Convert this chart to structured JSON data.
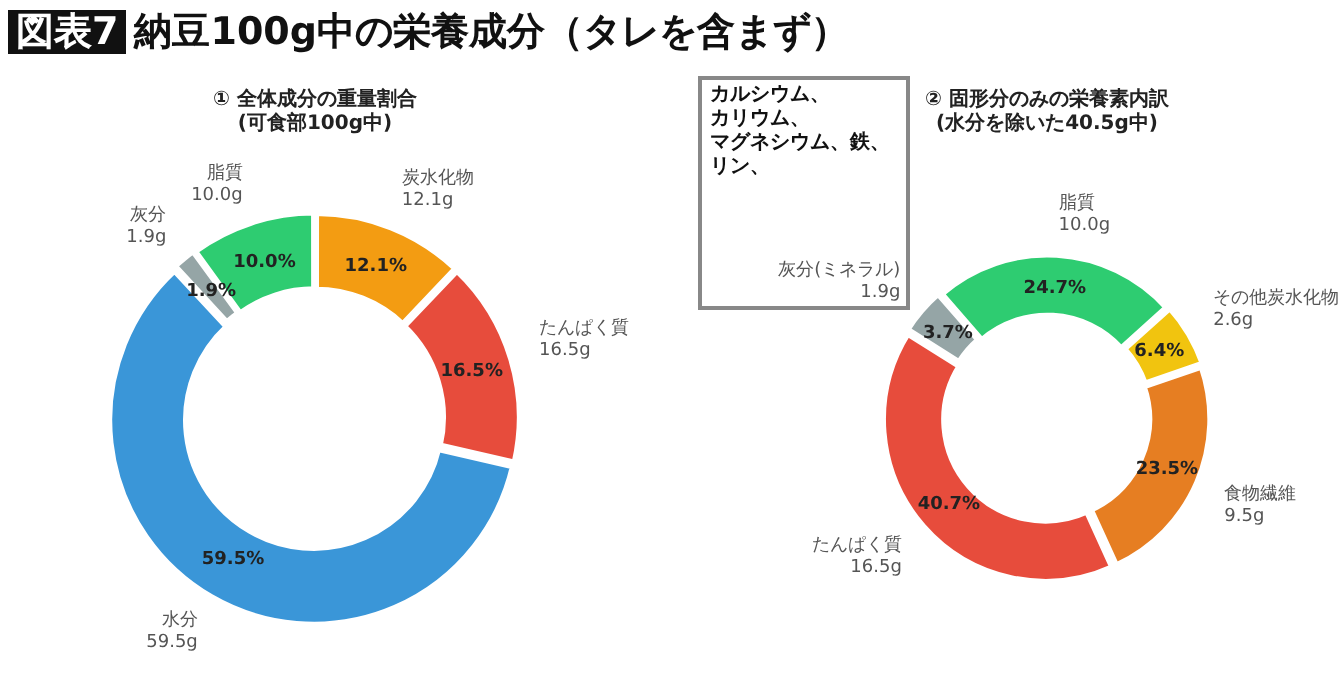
{
  "chart_data": [
    {
      "type": "donut",
      "title": "図表7 納豆100g中の栄養成分（タレを含まず）",
      "subtitle": "① 全体成分の重量割合\n(可食部100g中)",
      "categories": [
        "炭水化物",
        "たんぱく質",
        "水分",
        "灰分",
        "脂質"
      ],
      "values": [
        12.1,
        16.5,
        59.5,
        1.9,
        10.0
      ],
      "colors": [
        "#f39c12",
        "#e74c3c",
        "#3a96d8",
        "#95a5a6",
        "#2ecc71"
      ],
      "value_labels": [
        "12.1g",
        "16.5g",
        "59.5g",
        "1.9g",
        "10.0g"
      ],
      "annotations": [
        {
          "text": "12.1%",
          "x": "炭水化物"
        },
        {
          "text": "16.5%",
          "x": "たんぱく質"
        },
        {
          "text": "59.5%",
          "x": "水分"
        },
        {
          "text": "1.9%",
          "x": "灰分"
        },
        {
          "text": "10.0%",
          "x": "脂質"
        }
      ],
      "legend": false
    },
    {
      "type": "donut",
      "subtitle": "② 固形分のみの栄養素内訳\n(水分を除いた40.5g中)",
      "categories": [
        "脂質",
        "その他炭水化物",
        "食物繊維",
        "たんぱく質",
        "灰分(ミネラル)"
      ],
      "values": [
        10.0,
        2.6,
        9.5,
        16.5,
        1.9
      ],
      "colors": [
        "#2ecc71",
        "#f1c40f",
        "#e67e22",
        "#e74c3c",
        "#95a5a6"
      ],
      "value_labels": [
        "10.0g",
        "2.6g",
        "9.5g",
        "16.5g",
        "1.9g"
      ],
      "annotations": [
        {
          "text": "24.7%",
          "x": "脂質"
        },
        {
          "text": "6.4%",
          "x": "その他炭水化物"
        },
        {
          "text": "23.5%",
          "x": "食物繊維"
        },
        {
          "text": "40.7%",
          "x": "たんぱく質"
        },
        {
          "text": "3.7%",
          "x": "灰分(ミネラル)"
        },
        "カルシウム、カリウム、マグネシウム、鉄、リン、"
      ],
      "legend": false
    }
  ]
}
